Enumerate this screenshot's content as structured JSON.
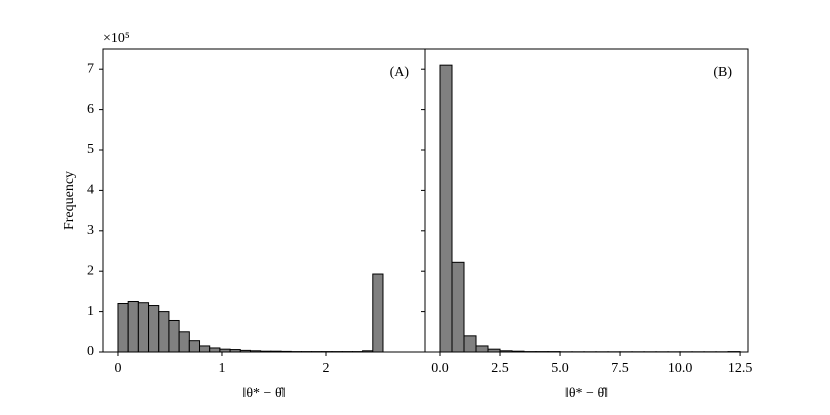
{
  "chart_data": [
    {
      "type": "histogram",
      "annotation": "(A)",
      "xlabel": "‖θ* − θ̂‖",
      "ylabel": "Frequency",
      "y_offset_label": "×10⁵",
      "bins": [
        0,
        0.098,
        0.196,
        0.294,
        0.392,
        0.49,
        0.588,
        0.686,
        0.784,
        0.882,
        0.98,
        1.078,
        1.176,
        1.274,
        1.372,
        1.47,
        1.568,
        1.666,
        1.764,
        1.862,
        1.96,
        2.058,
        2.156,
        2.254,
        2.352,
        2.45,
        2.548
      ],
      "values": [
        1.2,
        1.25,
        1.22,
        1.15,
        1.0,
        0.78,
        0.5,
        0.28,
        0.15,
        0.1,
        0.07,
        0.06,
        0.04,
        0.03,
        0.02,
        0.02,
        0.015,
        0.01,
        0.01,
        0.01,
        0.01,
        0.01,
        0.01,
        0.01,
        0.03,
        1.93
      ],
      "color": "#808080",
      "xlim": [
        -0.144,
        2.952
      ],
      "xticks": [
        0,
        1,
        2
      ],
      "ylim": [
        0,
        7.5
      ],
      "yticks": [
        0,
        1,
        2,
        3,
        4,
        5,
        6,
        7
      ]
    },
    {
      "type": "histogram",
      "annotation": "(B)",
      "xlabel": "‖θ* − θ̂‖",
      "bins": [
        0,
        0.5,
        1,
        1.5,
        2,
        2.5,
        3,
        3.5,
        4,
        4.5,
        5,
        5.5,
        6,
        6.5,
        7,
        7.5,
        8,
        8.5,
        9,
        9.5,
        10,
        10.5,
        11,
        11.5,
        12,
        12.5
      ],
      "values": [
        7.1,
        2.22,
        0.4,
        0.15,
        0.07,
        0.03,
        0.02,
        0.01,
        0.01,
        0.01,
        0.005,
        0.005,
        0.005,
        0.005,
        0.005,
        0.005,
        0.005,
        0.005,
        0.005,
        0.005,
        0.005,
        0.005,
        0.005,
        0.005,
        0.01
      ],
      "color": "#808080",
      "xlim": [
        -0.625,
        12.83
      ],
      "xticks": [
        {
          "value": 0,
          "label": "0.0"
        },
        2.5,
        {
          "value": 5,
          "label": "5.0"
        },
        7.5,
        {
          "value": 10,
          "label": "10.0"
        },
        12.5
      ],
      "ylim": [
        0,
        7.5
      ]
    }
  ]
}
